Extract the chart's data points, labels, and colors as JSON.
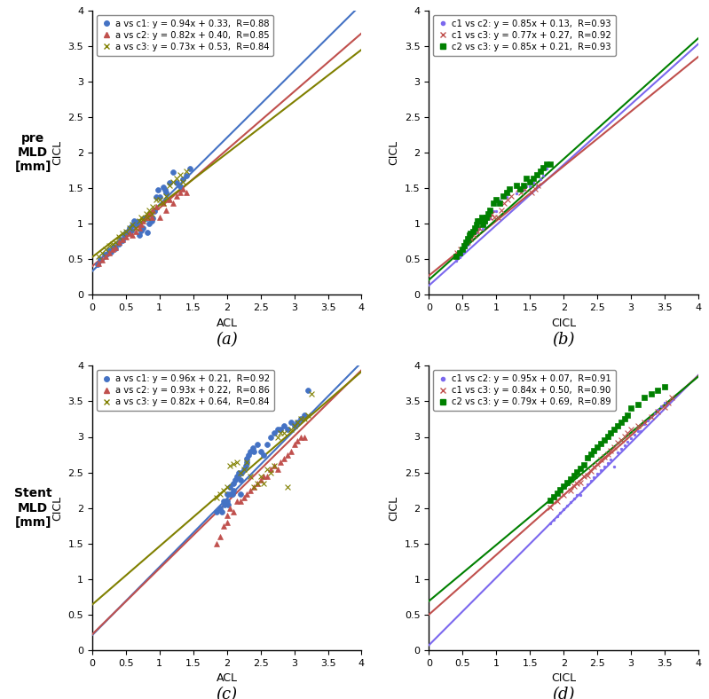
{
  "panels": [
    {
      "label": "(a)",
      "xlabel": "ACL",
      "ylabel": "CICL",
      "row_label": "pre\nMLD\n[mm]",
      "xlim": [
        0,
        4
      ],
      "ylim": [
        0,
        4
      ],
      "lines": [
        {
          "slope": 0.94,
          "intercept": 0.33,
          "color": "#4472C4",
          "label": "a vs c1: y = 0.94x + 0.33,  R=0.88"
        },
        {
          "slope": 0.82,
          "intercept": 0.4,
          "color": "#C0504D",
          "label": "a vs c2: y = 0.82x + 0.40,  R=0.85"
        },
        {
          "slope": 0.73,
          "intercept": 0.53,
          "color": "#808000",
          "label": "a vs c3: y = 0.73x + 0.53,  R=0.84"
        }
      ],
      "scatter": [
        {
          "marker": "o",
          "color": "#4472C4",
          "x": [
            0.08,
            0.12,
            0.18,
            0.22,
            0.25,
            0.28,
            0.32,
            0.35,
            0.38,
            0.4,
            0.42,
            0.45,
            0.48,
            0.5,
            0.52,
            0.55,
            0.58,
            0.6,
            0.62,
            0.65,
            0.68,
            0.7,
            0.72,
            0.75,
            0.78,
            0.8,
            0.82,
            0.85,
            0.88,
            0.9,
            0.92,
            0.95,
            0.98,
            1.0,
            1.05,
            1.08,
            1.1,
            1.15,
            1.2,
            1.25,
            1.3,
            1.35,
            1.4,
            1.45
          ],
          "y": [
            0.43,
            0.5,
            0.56,
            0.58,
            0.63,
            0.6,
            0.68,
            0.65,
            0.73,
            0.72,
            0.78,
            0.76,
            0.84,
            0.88,
            0.86,
            0.94,
            0.9,
            0.98,
            1.04,
            1.0,
            1.03,
            0.84,
            0.9,
            0.94,
            1.08,
            1.08,
            0.88,
            1.0,
            1.04,
            1.08,
            1.18,
            1.38,
            1.48,
            1.38,
            1.52,
            1.48,
            1.44,
            1.58,
            1.73,
            1.58,
            1.53,
            1.63,
            1.68,
            1.78
          ]
        },
        {
          "marker": "^",
          "color": "#C0504D",
          "x": [
            0.1,
            0.15,
            0.2,
            0.25,
            0.3,
            0.35,
            0.4,
            0.45,
            0.5,
            0.55,
            0.6,
            0.65,
            0.7,
            0.72,
            0.75,
            0.8,
            0.82,
            0.85,
            0.88,
            0.9,
            0.95,
            1.0,
            1.05,
            1.1,
            1.15,
            1.2,
            1.25,
            1.3,
            1.35,
            1.4
          ],
          "y": [
            0.44,
            0.49,
            0.54,
            0.59,
            0.64,
            0.67,
            0.74,
            0.78,
            0.81,
            0.87,
            0.84,
            0.89,
            0.94,
            0.99,
            1.04,
            1.09,
            1.09,
            1.14,
            1.09,
            1.19,
            1.24,
            1.09,
            1.29,
            1.19,
            1.34,
            1.29,
            1.39,
            1.44,
            1.49,
            1.44
          ]
        },
        {
          "marker": "x",
          "color": "#808000",
          "x": [
            0.1,
            0.15,
            0.2,
            0.25,
            0.3,
            0.35,
            0.4,
            0.45,
            0.5,
            0.55,
            0.6,
            0.65,
            0.7,
            0.72,
            0.75,
            0.8,
            0.82,
            0.85,
            0.88,
            0.9,
            0.95,
            1.0,
            1.05,
            1.1,
            1.15,
            1.2,
            1.25,
            1.3,
            1.35,
            1.4
          ],
          "y": [
            0.54,
            0.59,
            0.64,
            0.69,
            0.71,
            0.74,
            0.81,
            0.87,
            0.89,
            0.94,
            0.99,
            0.94,
            1.04,
            1.09,
            1.07,
            1.14,
            1.09,
            1.19,
            1.14,
            1.24,
            1.34,
            1.34,
            1.29,
            1.39,
            1.54,
            1.59,
            1.64,
            1.69,
            1.59,
            1.74
          ]
        }
      ]
    },
    {
      "label": "(b)",
      "xlabel": "CICL",
      "ylabel": "CICL",
      "row_label": null,
      "xlim": [
        0,
        4
      ],
      "ylim": [
        0,
        4
      ],
      "lines": [
        {
          "slope": 0.85,
          "intercept": 0.13,
          "color": "#7B68EE",
          "label": "c1 vs c2: y = 0.85x + 0.13,  R=0.93"
        },
        {
          "slope": 0.77,
          "intercept": 0.27,
          "color": "#C0504D",
          "label": "c1 vs c3: y = 0.77x + 0.27,  R=0.92"
        },
        {
          "slope": 0.85,
          "intercept": 0.21,
          "color": "#008000",
          "label": "c2 vs c3: y = 0.85x + 0.21,  R=0.93"
        }
      ],
      "scatter": [
        {
          "marker": ".",
          "color": "#7B68EE",
          "x": [
            0.4,
            0.45,
            0.5,
            0.52,
            0.55,
            0.58,
            0.6,
            0.62,
            0.65,
            0.68,
            0.7,
            0.72,
            0.75,
            0.78,
            0.8,
            0.82,
            0.85,
            0.88,
            0.9,
            0.95,
            1.0,
            1.02,
            1.05,
            1.1,
            1.15,
            1.2,
            1.3,
            1.4,
            1.45,
            1.5,
            1.55,
            1.6,
            1.65,
            1.7,
            1.75
          ],
          "y": [
            0.48,
            0.53,
            0.58,
            0.63,
            0.68,
            0.7,
            0.76,
            0.8,
            0.86,
            0.88,
            0.88,
            0.93,
            0.93,
            0.98,
            0.93,
            0.98,
            1.03,
            1.08,
            1.08,
            1.18,
            1.18,
            1.28,
            1.33,
            1.38,
            1.38,
            1.48,
            1.43,
            1.48,
            1.53,
            1.53,
            1.58,
            1.53,
            1.63,
            1.68,
            1.78
          ]
        },
        {
          "marker": "x",
          "color": "#C0504D",
          "x": [
            0.42,
            0.47,
            0.52,
            0.57,
            0.62,
            0.67,
            0.72,
            0.75,
            0.78,
            0.82,
            0.87,
            0.9,
            0.93,
            0.97,
            1.02,
            1.07,
            1.12,
            1.17,
            1.22,
            1.32,
            1.37,
            1.42,
            1.52,
            1.57,
            1.62
          ],
          "y": [
            0.59,
            0.64,
            0.69,
            0.74,
            0.79,
            0.84,
            0.89,
            0.94,
            0.99,
            1.04,
            1.09,
            1.09,
            1.14,
            1.09,
            1.09,
            1.19,
            1.29,
            1.34,
            1.39,
            1.49,
            1.44,
            1.49,
            1.44,
            1.49,
            1.54
          ]
        },
        {
          "marker": "s",
          "color": "#008000",
          "x": [
            0.4,
            0.45,
            0.5,
            0.52,
            0.55,
            0.58,
            0.6,
            0.62,
            0.65,
            0.68,
            0.7,
            0.72,
            0.75,
            0.78,
            0.8,
            0.82,
            0.85,
            0.88,
            0.9,
            0.95,
            1.0,
            1.05,
            1.1,
            1.15,
            1.2,
            1.3,
            1.35,
            1.4,
            1.45,
            1.5,
            1.55,
            1.6,
            1.65,
            1.7,
            1.75,
            1.8
          ],
          "y": [
            0.54,
            0.59,
            0.64,
            0.69,
            0.74,
            0.79,
            0.84,
            0.87,
            0.89,
            0.94,
            0.99,
            1.04,
            1.04,
            1.09,
            0.99,
            1.04,
            1.09,
            1.14,
            1.19,
            1.29,
            1.34,
            1.29,
            1.39,
            1.44,
            1.49,
            1.54,
            1.49,
            1.54,
            1.64,
            1.59,
            1.64,
            1.69,
            1.74,
            1.79,
            1.84,
            1.84
          ]
        }
      ]
    },
    {
      "label": "(c)",
      "xlabel": "ACL",
      "ylabel": "CICL",
      "row_label": "Stent\nMLD\n[mm]",
      "xlim": [
        0,
        4
      ],
      "ylim": [
        0,
        4
      ],
      "lines": [
        {
          "slope": 0.96,
          "intercept": 0.21,
          "color": "#4472C4",
          "label": "a vs c1: y = 0.96x + 0.21,  R=0.92"
        },
        {
          "slope": 0.93,
          "intercept": 0.22,
          "color": "#C0504D",
          "label": "a vs c2: y = 0.93x + 0.22,  R=0.86"
        },
        {
          "slope": 0.82,
          "intercept": 0.64,
          "color": "#808000",
          "label": "a vs c3: y = 0.82x + 0.64,  R=0.84"
        }
      ],
      "scatter": [
        {
          "marker": "o",
          "color": "#4472C4",
          "x": [
            1.85,
            1.9,
            1.92,
            1.95,
            1.97,
            2.0,
            2.0,
            2.02,
            2.05,
            2.05,
            2.08,
            2.1,
            2.1,
            2.12,
            2.15,
            2.18,
            2.2,
            2.2,
            2.22,
            2.25,
            2.28,
            2.3,
            2.3,
            2.32,
            2.35,
            2.38,
            2.4,
            2.45,
            2.5,
            2.55,
            2.6,
            2.65,
            2.7,
            2.75,
            2.8,
            2.85,
            2.9,
            2.95,
            3.0,
            3.05,
            3.1,
            3.15,
            3.2
          ],
          "y": [
            1.95,
            2.0,
            1.95,
            2.1,
            2.05,
            2.2,
            2.1,
            2.05,
            2.2,
            2.3,
            2.2,
            2.25,
            2.35,
            2.4,
            2.45,
            2.5,
            2.2,
            2.4,
            2.5,
            2.55,
            2.6,
            2.65,
            2.7,
            2.75,
            2.8,
            2.85,
            2.8,
            2.9,
            2.8,
            2.75,
            2.9,
            3.0,
            3.05,
            3.1,
            3.1,
            3.15,
            3.1,
            3.2,
            3.15,
            3.2,
            3.25,
            3.3,
            3.65
          ]
        },
        {
          "marker": "^",
          "color": "#C0504D",
          "x": [
            1.85,
            1.9,
            1.95,
            2.0,
            2.0,
            2.05,
            2.1,
            2.15,
            2.2,
            2.25,
            2.3,
            2.35,
            2.4,
            2.45,
            2.5,
            2.55,
            2.6,
            2.65,
            2.7,
            2.75,
            2.8,
            2.85,
            2.9,
            2.95,
            3.0,
            3.05,
            3.1,
            3.15
          ],
          "y": [
            1.5,
            1.6,
            1.75,
            1.8,
            1.9,
            2.0,
            1.95,
            2.1,
            2.1,
            2.15,
            2.2,
            2.25,
            2.3,
            2.35,
            2.4,
            2.45,
            2.45,
            2.55,
            2.6,
            2.55,
            2.65,
            2.7,
            2.75,
            2.8,
            2.9,
            2.95,
            3.0,
            3.0
          ]
        },
        {
          "marker": "x",
          "color": "#808000",
          "x": [
            1.85,
            1.9,
            1.95,
            2.0,
            2.05,
            2.1,
            2.15,
            2.2,
            2.25,
            2.3,
            2.35,
            2.4,
            2.45,
            2.5,
            2.55,
            2.6,
            2.65,
            2.7,
            2.75,
            2.8,
            2.85,
            2.9,
            2.95,
            3.0,
            3.05,
            3.1,
            3.15,
            3.2,
            3.25
          ],
          "y": [
            2.15,
            2.2,
            2.25,
            2.3,
            2.6,
            2.62,
            2.65,
            2.5,
            2.55,
            2.65,
            2.45,
            2.3,
            2.35,
            2.45,
            2.35,
            2.55,
            2.5,
            2.6,
            3.0,
            3.05,
            3.05,
            2.3,
            3.1,
            3.15,
            3.2,
            3.25,
            3.25,
            3.3,
            3.6
          ]
        }
      ]
    },
    {
      "label": "(d)",
      "xlabel": "CICL",
      "ylabel": "CICL",
      "row_label": null,
      "xlim": [
        0,
        4
      ],
      "ylim": [
        0,
        4
      ],
      "lines": [
        {
          "slope": 0.95,
          "intercept": 0.07,
          "color": "#7B68EE",
          "label": "c1 vs c2: y = 0.95x + 0.07,  R=0.91"
        },
        {
          "slope": 0.84,
          "intercept": 0.5,
          "color": "#C0504D",
          "label": "c1 vs c3: y = 0.84x + 0.50,  R=0.90"
        },
        {
          "slope": 0.79,
          "intercept": 0.69,
          "color": "#008000",
          "label": "c2 vs c3: y = 0.79x + 0.69,  R=0.89"
        }
      ],
      "scatter": [
        {
          "marker": ".",
          "color": "#7B68EE",
          "x": [
            1.8,
            1.85,
            1.9,
            1.95,
            2.0,
            2.05,
            2.1,
            2.15,
            2.2,
            2.25,
            2.3,
            2.35,
            2.4,
            2.45,
            2.5,
            2.55,
            2.6,
            2.65,
            2.7,
            2.75,
            2.8,
            2.85,
            2.9,
            2.95,
            3.0,
            3.05,
            3.1,
            3.15,
            3.2,
            3.25,
            3.3,
            3.35,
            3.4,
            3.45,
            3.5
          ],
          "y": [
            1.78,
            1.83,
            1.88,
            1.93,
            1.98,
            2.03,
            2.08,
            2.13,
            2.18,
            2.18,
            2.28,
            2.33,
            2.38,
            2.43,
            2.48,
            2.53,
            2.58,
            2.63,
            2.68,
            2.58,
            2.78,
            2.83,
            2.88,
            2.93,
            2.98,
            3.03,
            3.08,
            3.08,
            3.18,
            3.23,
            3.28,
            3.33,
            3.38,
            3.43,
            3.48
          ]
        },
        {
          "marker": "x",
          "color": "#C0504D",
          "x": [
            1.8,
            1.9,
            2.0,
            2.1,
            2.15,
            2.2,
            2.25,
            2.3,
            2.35,
            2.4,
            2.45,
            2.5,
            2.55,
            2.6,
            2.65,
            2.7,
            2.75,
            2.8,
            2.85,
            2.9,
            2.95,
            3.0,
            3.1,
            3.2,
            3.3,
            3.4,
            3.5,
            3.55,
            3.6
          ],
          "y": [
            2.01,
            2.1,
            2.18,
            2.25,
            2.31,
            2.35,
            2.36,
            2.44,
            2.46,
            2.52,
            2.58,
            2.62,
            2.68,
            2.72,
            2.76,
            2.81,
            2.86,
            2.92,
            2.96,
            3.01,
            3.06,
            3.1,
            3.15,
            3.2,
            3.28,
            3.35,
            3.42,
            3.48,
            3.55
          ]
        },
        {
          "marker": "s",
          "color": "#008000",
          "x": [
            1.8,
            1.85,
            1.9,
            1.95,
            2.0,
            2.05,
            2.1,
            2.15,
            2.2,
            2.25,
            2.3,
            2.35,
            2.4,
            2.45,
            2.5,
            2.55,
            2.6,
            2.65,
            2.7,
            2.75,
            2.8,
            2.85,
            2.9,
            2.95,
            3.0,
            3.1,
            3.2,
            3.3,
            3.4,
            3.5
          ],
          "y": [
            2.11,
            2.16,
            2.21,
            2.26,
            2.31,
            2.36,
            2.41,
            2.46,
            2.51,
            2.56,
            2.61,
            2.71,
            2.76,
            2.81,
            2.86,
            2.91,
            2.96,
            3.01,
            3.06,
            3.11,
            3.16,
            3.21,
            3.26,
            3.31,
            3.41,
            3.46,
            3.56,
            3.61,
            3.66,
            3.71
          ]
        }
      ]
    }
  ],
  "xticks": [
    0,
    0.5,
    1.0,
    1.5,
    2.0,
    2.5,
    3.0,
    3.5,
    4.0
  ],
  "yticks": [
    0,
    0.5,
    1.0,
    1.5,
    2.0,
    2.5,
    3.0,
    3.5,
    4.0
  ],
  "tick_labels": [
    "0",
    "0.5",
    "1",
    "1.5",
    "2",
    "2.5",
    "3",
    "3.5",
    "4"
  ],
  "scatter_size": 18,
  "line_width": 1.5,
  "legend_fontsize": 7.2,
  "axis_fontsize": 9,
  "label_fontsize": 13,
  "tick_fontsize": 8,
  "row_label_fontsize": 10
}
